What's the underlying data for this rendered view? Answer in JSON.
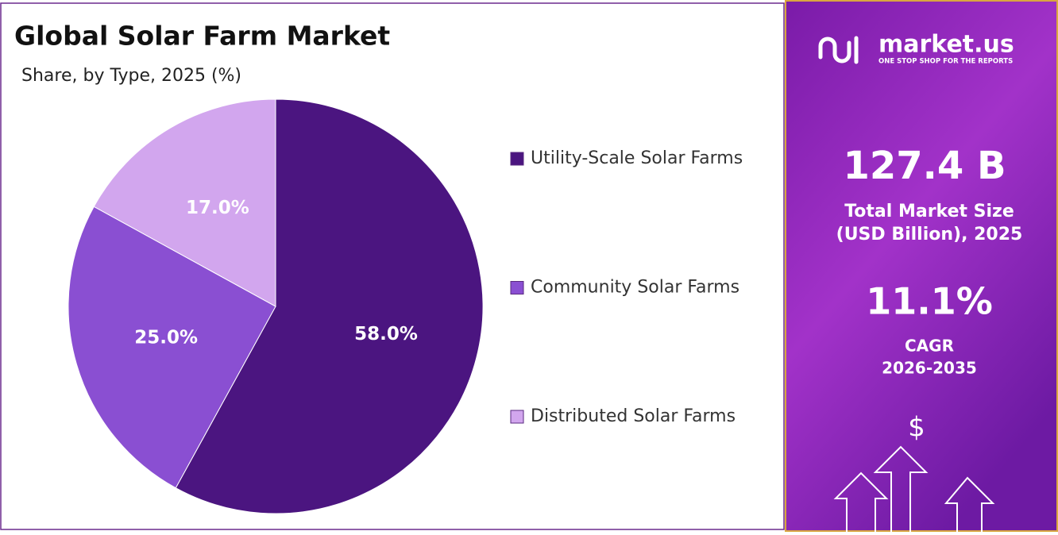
{
  "chart_data": {
    "type": "pie",
    "title": "Global Solar Farm Market",
    "subtitle": "Share, by Type, 2025 (%)",
    "categories": [
      "Utility-Scale Solar Farms",
      "Community Solar Farms",
      "Distributed Solar Farms"
    ],
    "values": [
      58,
      25,
      17
    ],
    "value_labels": [
      "58.0%",
      "25.0%",
      "17.0%"
    ],
    "colors": [
      "#4b1580",
      "#8a4fd2",
      "#d2a6ee"
    ]
  },
  "panel": {
    "brand": "market.us",
    "tagline": "ONE STOP SHOP FOR THE REPORTS",
    "market_size": "127.4 B",
    "market_size_label": [
      "Total Market Size",
      "(USD Billion), 2025"
    ],
    "cagr": "11.1%",
    "cagr_label": "CAGR",
    "cagr_period": "2026-2035",
    "icon": "$"
  }
}
